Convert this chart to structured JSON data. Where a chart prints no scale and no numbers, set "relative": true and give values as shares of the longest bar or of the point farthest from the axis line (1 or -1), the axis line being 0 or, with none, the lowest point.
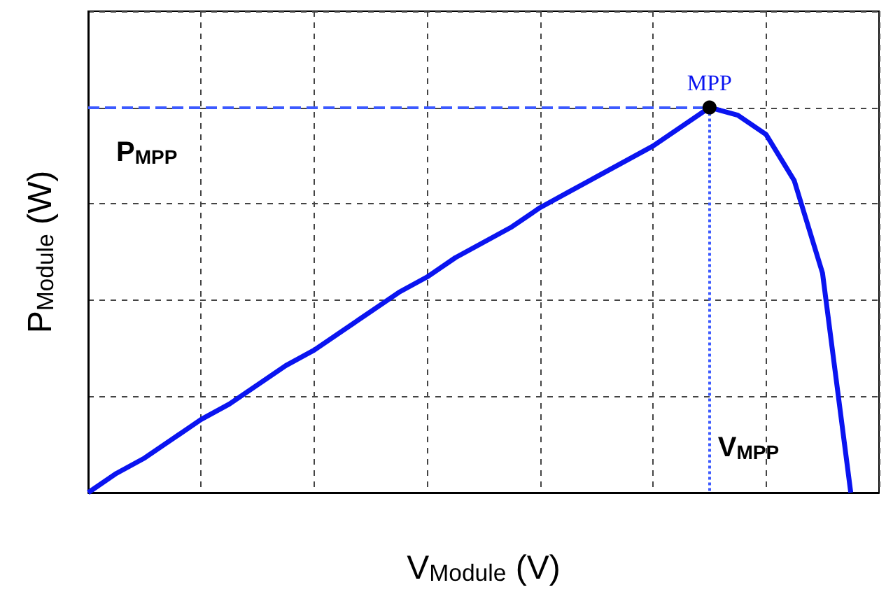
{
  "chart_data": {
    "type": "line",
    "relative": true,
    "xlabel": "V$_{Module}$ (V)",
    "ylabel": "P$_{Module}$ (W)",
    "grid": true,
    "marker": "none",
    "categories": [
      null,
      null,
      null,
      null,
      null,
      null,
      null,
      null,
      null,
      null,
      null,
      null,
      null,
      null,
      null,
      null,
      null,
      null,
      null,
      null,
      null,
      null,
      null,
      null,
      null,
      null,
      null,
      null,
      null
    ],
    "series": [
      {
        "color": "#0a14f0",
        "values": [
          0,
          0.05,
          0.09,
          0.14,
          0.19,
          0.23,
          0.28,
          0.33,
          0.37,
          0.42,
          0.47,
          0.52,
          0.56,
          0.61,
          0.65,
          0.69,
          0.74,
          0.78,
          0.82,
          0.86,
          0.9,
          0.95,
          1,
          0.98,
          0.93,
          0.81,
          0.57,
          0,
          null
        ]
      }
    ],
    "ref_lines": [
      {
        "axis": "y",
        "label": "P$_{MPP}$",
        "color": "#3c5aff",
        "line_style": "dashed"
      },
      {
        "axis": "x",
        "label": "V$_{MPP}$",
        "color": "#3c5aff",
        "line_style": "dotted"
      }
    ],
    "annotations": [
      "MPP"
    ]
  }
}
